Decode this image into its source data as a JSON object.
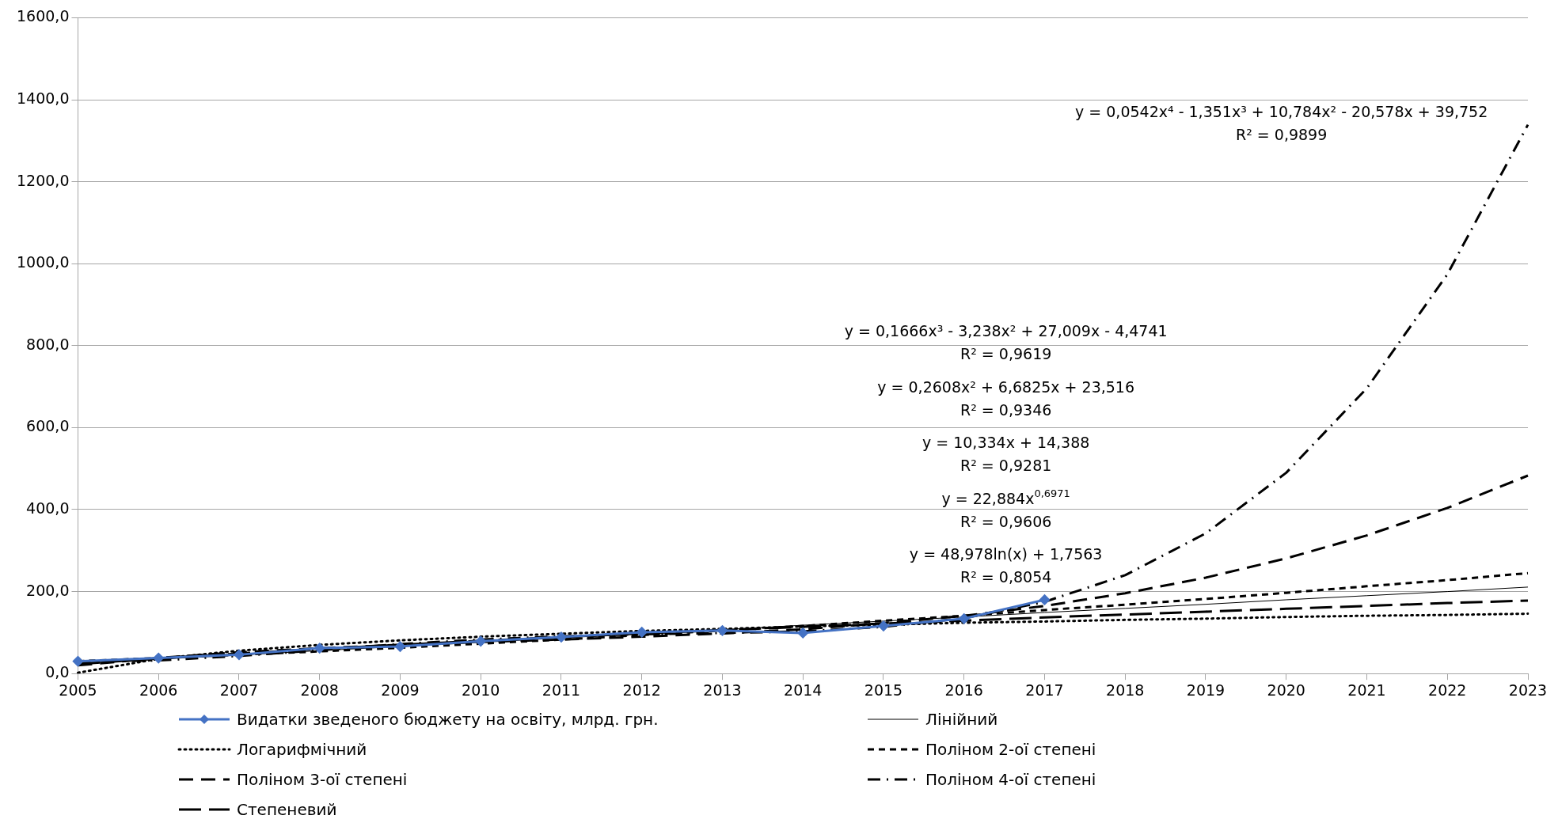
{
  "chart_data": {
    "type": "line",
    "categories": [
      "2005",
      "2006",
      "2007",
      "2008",
      "2009",
      "2010",
      "2011",
      "2012",
      "2013",
      "2014",
      "2015",
      "2016",
      "2017",
      "2018",
      "2019",
      "2020",
      "2021",
      "2022",
      "2023"
    ],
    "series": [
      {
        "name": "Видатки зведеного бюджету на освіту, млрд. грн.",
        "color": "#4472c4",
        "marker": "diamond",
        "line_style": "solid",
        "values": [
          30,
          38,
          46,
          62,
          66,
          79,
          89,
          101,
          105,
          99,
          116,
          134,
          180,
          null,
          null,
          null,
          null,
          null,
          null
        ]
      },
      {
        "name": "Лінійний",
        "color": "#000000",
        "marker": "none",
        "line_style": "solid",
        "values": [
          25,
          35,
          45,
          56,
          66,
          76,
          87,
          97,
          107,
          118,
          128,
          138,
          149,
          159,
          169,
          180,
          190,
          200,
          211
        ]
      },
      {
        "name": "Логарифмічний",
        "color": "#000000",
        "marker": "none",
        "line_style": "dotted",
        "values": [
          2,
          36,
          56,
          70,
          81,
          90,
          97,
          104,
          109,
          115,
          119,
          124,
          127,
          131,
          134,
          138,
          141,
          143,
          146
        ]
      },
      {
        "name": "Поліном 2-ої степені",
        "color": "#000000",
        "marker": "none",
        "line_style": "dashed",
        "values": [
          30,
          38,
          46,
          54,
          63,
          73,
          83,
          94,
          105,
          116,
          129,
          141,
          155,
          168,
          182,
          197,
          213,
          228,
          245
        ]
      },
      {
        "name": "Поліном 3-ої степені",
        "color": "#000000",
        "marker": "none",
        "line_style": "dashed",
        "values": [
          20,
          38,
          52,
          62,
          70,
          77,
          83,
          90,
          98,
          108,
          123,
          141,
          165,
          196,
          234,
          281,
          337,
          404,
          483
        ]
      },
      {
        "name": "Поліном 4-ої степені",
        "color": "#000000",
        "marker": "none",
        "line_style": "dashed",
        "values": [
          29,
          32,
          43,
          57,
          72,
          83,
          91,
          96,
          99,
          103,
          114,
          135,
          175,
          240,
          342,
          490,
          696,
          974,
          1339
        ]
      },
      {
        "name": "Степеневий",
        "color": "#000000",
        "marker": "none",
        "line_style": "dashed",
        "values": [
          23,
          37,
          49,
          60,
          70,
          80,
          89,
          98,
          106,
          114,
          122,
          129,
          137,
          144,
          151,
          158,
          165,
          172,
          178
        ]
      }
    ],
    "ylim": [
      0,
      1600
    ],
    "yticks": [
      {
        "value": 0,
        "label": "0,0"
      },
      {
        "value": 200,
        "label": "200,0"
      },
      {
        "value": 400,
        "label": "400,0"
      },
      {
        "value": 600,
        "label": "600,0"
      },
      {
        "value": 800,
        "label": "800,0"
      },
      {
        "value": 1000,
        "label": "1000,0"
      },
      {
        "value": 1200,
        "label": "1200,0"
      },
      {
        "value": 1400,
        "label": "1400,0"
      },
      {
        "value": 1600,
        "label": "1600,0"
      }
    ],
    "grid": "y",
    "legend": "bottom",
    "annotations": [
      "y = 0,0542x⁴ - 1,351x³ + 10,784x² - 20,578x + 39,752",
      "R² = 0,9899",
      "y = 0,1666x³ - 3,238x² + 27,009x - 4,4741",
      "R² = 0,9619",
      "y = 0,2608x² + 6,6825x + 23,516",
      "R² = 0,9346",
      "y = 10,334x + 14,388",
      "R² = 0,9281",
      "y = 22,884x$^{0,6971}$",
      "R² = 0,9606",
      "y = 48,978ln(x) + 1,7563",
      "R² = 0,8054"
    ]
  }
}
